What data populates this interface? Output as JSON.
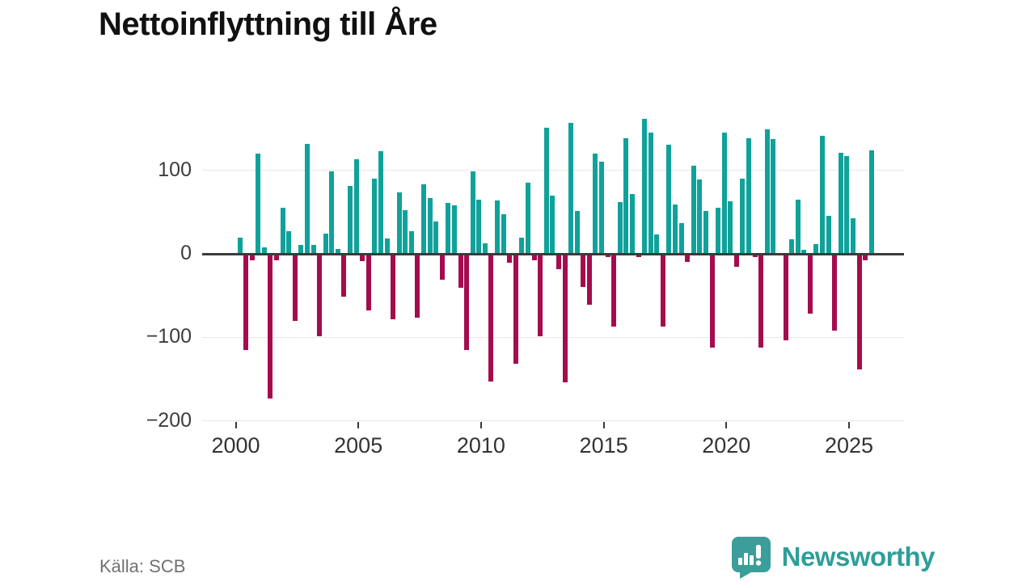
{
  "title": "Nettoinflyttning till Åre",
  "source": "Källa: SCB",
  "branding": {
    "name": "Newsworthy",
    "color": "#2f9e99"
  },
  "chart_data": {
    "type": "bar",
    "title": "Nettoinflyttning till Åre",
    "period": "quarterly",
    "xlabel": "",
    "ylabel": "",
    "ylim": [
      -200,
      175
    ],
    "grid": "horizontal",
    "colors": {
      "positive": "#10a29a",
      "negative": "#a50c4d"
    },
    "y_ticks": [
      {
        "label": "100",
        "value": 100
      },
      {
        "label": "0",
        "value": 0
      },
      {
        "label": "−100",
        "value": -100
      },
      {
        "label": "−200",
        "value": -200
      }
    ],
    "x_ticks": [
      {
        "label": "2000",
        "year": 2000
      },
      {
        "label": "2005",
        "year": 2005
      },
      {
        "label": "2010",
        "year": 2010
      },
      {
        "label": "2015",
        "year": 2015
      },
      {
        "label": "2020",
        "year": 2020
      },
      {
        "label": "2025",
        "year": 2025
      }
    ],
    "series": [
      {
        "year": 2000,
        "values": [
          19,
          -115,
          -8,
          120
        ]
      },
      {
        "year": 2001,
        "values": [
          8,
          -173,
          -8,
          55
        ]
      },
      {
        "year": 2002,
        "values": [
          27,
          -80,
          11,
          132
        ]
      },
      {
        "year": 2003,
        "values": [
          11,
          -99,
          24,
          99
        ]
      },
      {
        "year": 2004,
        "values": [
          6,
          -51,
          81,
          113
        ]
      },
      {
        "year": 2005,
        "values": [
          -9,
          -68,
          90,
          123
        ]
      },
      {
        "year": 2006,
        "values": [
          18,
          -78,
          74,
          52
        ]
      },
      {
        "year": 2007,
        "values": [
          27,
          -76,
          83,
          67
        ]
      },
      {
        "year": 2008,
        "values": [
          39,
          -31,
          61,
          58
        ]
      },
      {
        "year": 2009,
        "values": [
          -41,
          -115,
          99,
          65
        ]
      },
      {
        "year": 2010,
        "values": [
          13,
          -153,
          64,
          47
        ]
      },
      {
        "year": 2011,
        "values": [
          -11,
          -132,
          19,
          85
        ]
      },
      {
        "year": 2012,
        "values": [
          -8,
          -99,
          151,
          70
        ]
      },
      {
        "year": 2013,
        "values": [
          -18,
          -154,
          157,
          51
        ]
      },
      {
        "year": 2014,
        "values": [
          -40,
          -61,
          120,
          110
        ]
      },
      {
        "year": 2015,
        "values": [
          -4,
          -87,
          62,
          138
        ]
      },
      {
        "year": 2016,
        "values": [
          72,
          -4,
          162,
          145
        ]
      },
      {
        "year": 2017,
        "values": [
          23,
          -87,
          131,
          59
        ]
      },
      {
        "year": 2018,
        "values": [
          37,
          -10,
          105,
          89
        ]
      },
      {
        "year": 2019,
        "values": [
          51,
          -112,
          55,
          145
        ]
      },
      {
        "year": 2020,
        "values": [
          63,
          -15,
          90,
          138
        ]
      },
      {
        "year": 2021,
        "values": [
          -4,
          -112,
          149,
          137
        ]
      },
      {
        "year": 2022,
        "values": [
          0,
          -104,
          17,
          65
        ]
      },
      {
        "year": 2023,
        "values": [
          5,
          -72,
          12,
          141
        ]
      },
      {
        "year": 2024,
        "values": [
          45,
          -92,
          121,
          117
        ]
      },
      {
        "year": 2025,
        "values": [
          43,
          -138,
          -8,
          124
        ]
      }
    ]
  }
}
